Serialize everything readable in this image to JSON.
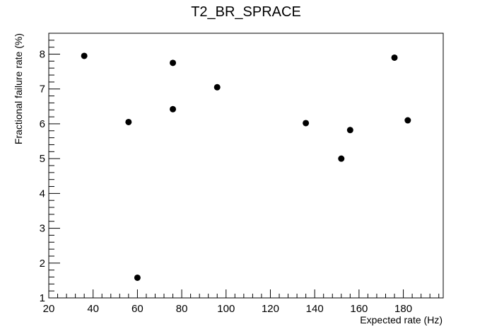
{
  "chart_data": {
    "type": "scatter",
    "title": "T2_BR_SPRACE",
    "xlabel": "Expected rate (Hz)",
    "ylabel": "Fractional failure rate (%)",
    "xlim": [
      20,
      198
    ],
    "ylim": [
      1,
      8.6
    ],
    "x_ticks": [
      20,
      40,
      60,
      80,
      100,
      120,
      140,
      160,
      180
    ],
    "y_ticks": [
      1,
      2,
      3,
      4,
      5,
      6,
      7,
      8
    ],
    "grid": false,
    "legend": "none",
    "marker_color": "#000000",
    "points": [
      {
        "x": 36,
        "y": 7.95
      },
      {
        "x": 56,
        "y": 6.05
      },
      {
        "x": 60,
        "y": 1.58
      },
      {
        "x": 76,
        "y": 7.75
      },
      {
        "x": 76,
        "y": 6.42
      },
      {
        "x": 96,
        "y": 7.05
      },
      {
        "x": 136,
        "y": 6.02
      },
      {
        "x": 152,
        "y": 5.0
      },
      {
        "x": 156,
        "y": 5.82
      },
      {
        "x": 176,
        "y": 7.9
      },
      {
        "x": 182,
        "y": 6.1
      }
    ]
  }
}
